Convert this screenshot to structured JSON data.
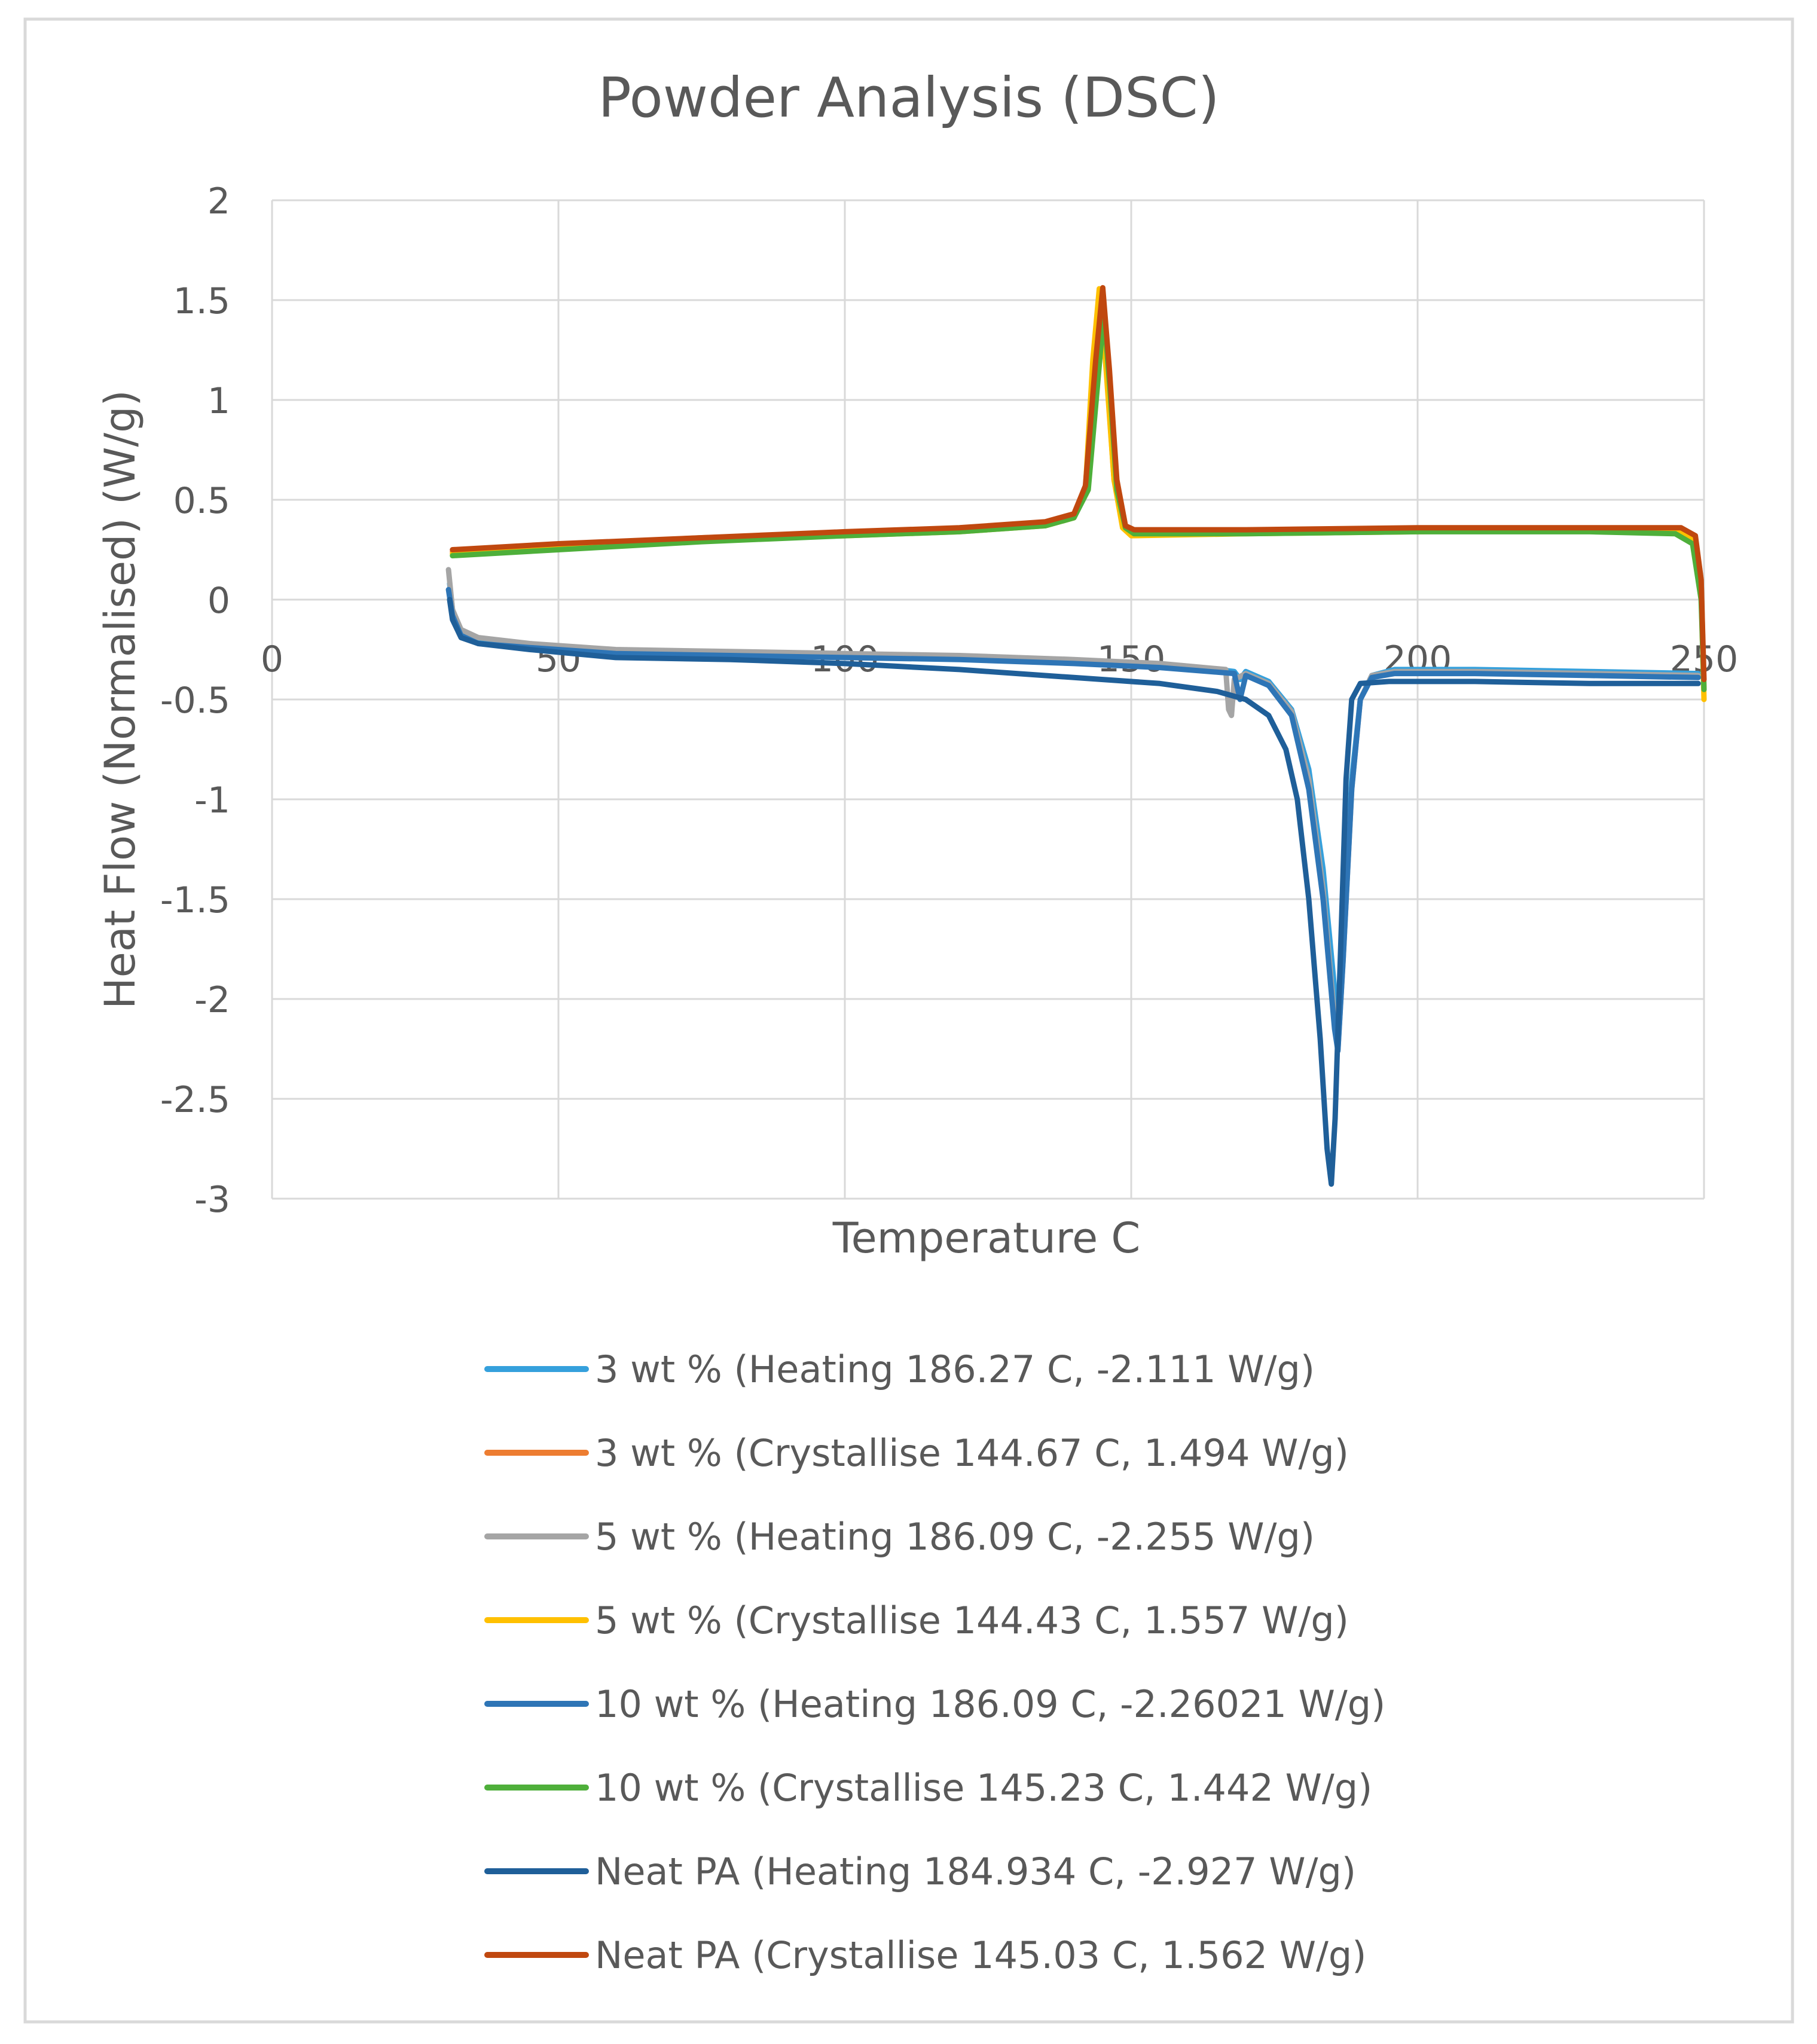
{
  "chart_data": {
    "type": "line",
    "title": "Powder Analysis (DSC)",
    "xlabel": "Temperature C",
    "ylabel": "Heat Flow (Normalised) (W/g)",
    "xlim": [
      0,
      250
    ],
    "ylim": [
      -3,
      2
    ],
    "x_ticks": [
      0,
      50,
      100,
      150,
      200,
      250
    ],
    "y_ticks": [
      -3,
      -2.5,
      -2,
      -1.5,
      -1,
      -0.5,
      0,
      0.5,
      1,
      1.5,
      2
    ],
    "grid": true,
    "legend_position": "bottom",
    "series": [
      {
        "name": "3 wt % (Heating 186.27 C, -2.111 W/g)",
        "color": "#35A0DC",
        "points": [
          [
            31.0,
            0.08
          ],
          [
            31.5,
            -0.05
          ],
          [
            33,
            -0.16
          ],
          [
            36,
            -0.2
          ],
          [
            45,
            -0.23
          ],
          [
            60,
            -0.26
          ],
          [
            80,
            -0.27
          ],
          [
            100,
            -0.28
          ],
          [
            120,
            -0.29
          ],
          [
            140,
            -0.31
          ],
          [
            155,
            -0.33
          ],
          [
            165,
            -0.35
          ],
          [
            168,
            -0.36
          ],
          [
            169,
            -0.4
          ],
          [
            170,
            -0.36
          ],
          [
            174,
            -0.41
          ],
          [
            178,
            -0.55
          ],
          [
            181,
            -0.85
          ],
          [
            183.5,
            -1.35
          ],
          [
            185.5,
            -1.95
          ],
          [
            186.27,
            -2.111
          ],
          [
            187,
            -1.7
          ],
          [
            188.5,
            -0.9
          ],
          [
            190,
            -0.5
          ],
          [
            192,
            -0.38
          ],
          [
            196,
            -0.35
          ],
          [
            210,
            -0.35
          ],
          [
            230,
            -0.36
          ],
          [
            249,
            -0.37
          ]
        ]
      },
      {
        "name": "3 wt % (Crystallise 144.67 C, 1.494 W/g)",
        "color": "#ED7D31",
        "points": [
          [
            31.5,
            0.24
          ],
          [
            50,
            0.27
          ],
          [
            75,
            0.31
          ],
          [
            100,
            0.33
          ],
          [
            120,
            0.35
          ],
          [
            135,
            0.38
          ],
          [
            140,
            0.42
          ],
          [
            142,
            0.55
          ],
          [
            143.5,
            1.1
          ],
          [
            144.67,
            1.494
          ],
          [
            145.8,
            1.1
          ],
          [
            147,
            0.6
          ],
          [
            148.5,
            0.38
          ],
          [
            150,
            0.34
          ],
          [
            170,
            0.34
          ],
          [
            200,
            0.35
          ],
          [
            230,
            0.35
          ],
          [
            246,
            0.35
          ],
          [
            248.5,
            0.31
          ],
          [
            249.5,
            0.1
          ],
          [
            250,
            -0.45
          ]
        ]
      },
      {
        "name": "5 wt % (Heating 186.09 C, -2.255 W/g)",
        "color": "#A5A5A5",
        "points": [
          [
            30.8,
            0.15
          ],
          [
            31.5,
            -0.05
          ],
          [
            33,
            -0.15
          ],
          [
            36,
            -0.19
          ],
          [
            45,
            -0.22
          ],
          [
            60,
            -0.25
          ],
          [
            80,
            -0.26
          ],
          [
            100,
            -0.27
          ],
          [
            120,
            -0.28
          ],
          [
            140,
            -0.3
          ],
          [
            155,
            -0.32
          ],
          [
            166.5,
            -0.35
          ],
          [
            167,
            -0.55
          ],
          [
            167.5,
            -0.58
          ],
          [
            168,
            -0.4
          ],
          [
            170,
            -0.37
          ],
          [
            174,
            -0.42
          ],
          [
            178,
            -0.56
          ],
          [
            181,
            -0.9
          ],
          [
            183.5,
            -1.45
          ],
          [
            185.5,
            -2.1
          ],
          [
            186.09,
            -2.255
          ],
          [
            187,
            -1.8
          ],
          [
            188.5,
            -0.95
          ],
          [
            190,
            -0.5
          ],
          [
            192,
            -0.38
          ],
          [
            196,
            -0.36
          ],
          [
            210,
            -0.36
          ],
          [
            230,
            -0.37
          ],
          [
            249,
            -0.38
          ]
        ]
      },
      {
        "name": "5 wt % (Crystallise 144.43 C, 1.557 W/g)",
        "color": "#FFC000",
        "points": [
          [
            31.5,
            0.23
          ],
          [
            50,
            0.26
          ],
          [
            75,
            0.3
          ],
          [
            100,
            0.32
          ],
          [
            120,
            0.34
          ],
          [
            135,
            0.37
          ],
          [
            140,
            0.41
          ],
          [
            142,
            0.55
          ],
          [
            143.3,
            1.2
          ],
          [
            144.43,
            1.557
          ],
          [
            145.5,
            1.2
          ],
          [
            147,
            0.6
          ],
          [
            148.5,
            0.36
          ],
          [
            150,
            0.32
          ],
          [
            170,
            0.33
          ],
          [
            200,
            0.34
          ],
          [
            230,
            0.35
          ],
          [
            246,
            0.34
          ],
          [
            248.5,
            0.3
          ],
          [
            249.5,
            0.05
          ],
          [
            250,
            -0.5
          ]
        ]
      },
      {
        "name": "10 wt % (Heating 186.09 C, -2.26021 W/g)",
        "color": "#2E75B6",
        "points": [
          [
            30.8,
            0.05
          ],
          [
            31.5,
            -0.08
          ],
          [
            33,
            -0.18
          ],
          [
            36,
            -0.22
          ],
          [
            45,
            -0.24
          ],
          [
            60,
            -0.27
          ],
          [
            80,
            -0.28
          ],
          [
            100,
            -0.29
          ],
          [
            120,
            -0.3
          ],
          [
            140,
            -0.32
          ],
          [
            155,
            -0.34
          ],
          [
            168,
            -0.37
          ],
          [
            169,
            -0.5
          ],
          [
            170,
            -0.38
          ],
          [
            174,
            -0.43
          ],
          [
            178,
            -0.58
          ],
          [
            181,
            -0.95
          ],
          [
            183.5,
            -1.5
          ],
          [
            185.5,
            -2.15
          ],
          [
            186.09,
            -2.26021
          ],
          [
            187,
            -1.8
          ],
          [
            188.5,
            -0.95
          ],
          [
            190,
            -0.5
          ],
          [
            192,
            -0.39
          ],
          [
            196,
            -0.37
          ],
          [
            210,
            -0.37
          ],
          [
            230,
            -0.38
          ],
          [
            249,
            -0.39
          ]
        ]
      },
      {
        "name": "10 wt % (Crystallise 145.23 C, 1.442 W/g)",
        "color": "#4EAF3A",
        "points": [
          [
            31.5,
            0.22
          ],
          [
            50,
            0.25
          ],
          [
            75,
            0.29
          ],
          [
            100,
            0.32
          ],
          [
            120,
            0.34
          ],
          [
            135,
            0.37
          ],
          [
            140,
            0.41
          ],
          [
            142.5,
            0.55
          ],
          [
            144.2,
            1.1
          ],
          [
            145.23,
            1.442
          ],
          [
            146.3,
            1.05
          ],
          [
            147.5,
            0.55
          ],
          [
            149,
            0.36
          ],
          [
            150.5,
            0.33
          ],
          [
            170,
            0.33
          ],
          [
            200,
            0.34
          ],
          [
            230,
            0.34
          ],
          [
            245,
            0.33
          ],
          [
            248,
            0.28
          ],
          [
            249.5,
            0.0
          ],
          [
            250,
            -0.45
          ]
        ]
      },
      {
        "name": "Neat PA (Heating 184.934 C, -2.927 W/g)",
        "color": "#1F5F99",
        "points": [
          [
            31,
            0.0
          ],
          [
            31.5,
            -0.1
          ],
          [
            33,
            -0.19
          ],
          [
            36,
            -0.22
          ],
          [
            45,
            -0.25
          ],
          [
            60,
            -0.29
          ],
          [
            80,
            -0.3
          ],
          [
            100,
            -0.32
          ],
          [
            120,
            -0.35
          ],
          [
            140,
            -0.39
          ],
          [
            155,
            -0.42
          ],
          [
            165,
            -0.46
          ],
          [
            170,
            -0.5
          ],
          [
            174,
            -0.58
          ],
          [
            177,
            -0.75
          ],
          [
            179,
            -1.0
          ],
          [
            181,
            -1.5
          ],
          [
            183,
            -2.2
          ],
          [
            184.2,
            -2.75
          ],
          [
            184.934,
            -2.927
          ],
          [
            185.6,
            -2.6
          ],
          [
            186.5,
            -1.8
          ],
          [
            187.5,
            -0.9
          ],
          [
            188.5,
            -0.5
          ],
          [
            190,
            -0.42
          ],
          [
            195,
            -0.41
          ],
          [
            210,
            -0.41
          ],
          [
            230,
            -0.42
          ],
          [
            249,
            -0.42
          ]
        ]
      },
      {
        "name": "Neat PA (Crystallise 145.03 C, 1.562 W/g)",
        "color": "#C0480F",
        "points": [
          [
            31.5,
            0.25
          ],
          [
            50,
            0.28
          ],
          [
            75,
            0.31
          ],
          [
            100,
            0.34
          ],
          [
            120,
            0.36
          ],
          [
            135,
            0.39
          ],
          [
            140,
            0.43
          ],
          [
            142,
            0.57
          ],
          [
            143.8,
            1.2
          ],
          [
            145.03,
            1.562
          ],
          [
            146.2,
            1.15
          ],
          [
            147.5,
            0.6
          ],
          [
            149,
            0.37
          ],
          [
            150.5,
            0.35
          ],
          [
            170,
            0.35
          ],
          [
            200,
            0.36
          ],
          [
            230,
            0.36
          ],
          [
            246,
            0.36
          ],
          [
            248.5,
            0.32
          ],
          [
            249.5,
            0.1
          ],
          [
            250,
            -0.4
          ]
        ]
      }
    ]
  }
}
